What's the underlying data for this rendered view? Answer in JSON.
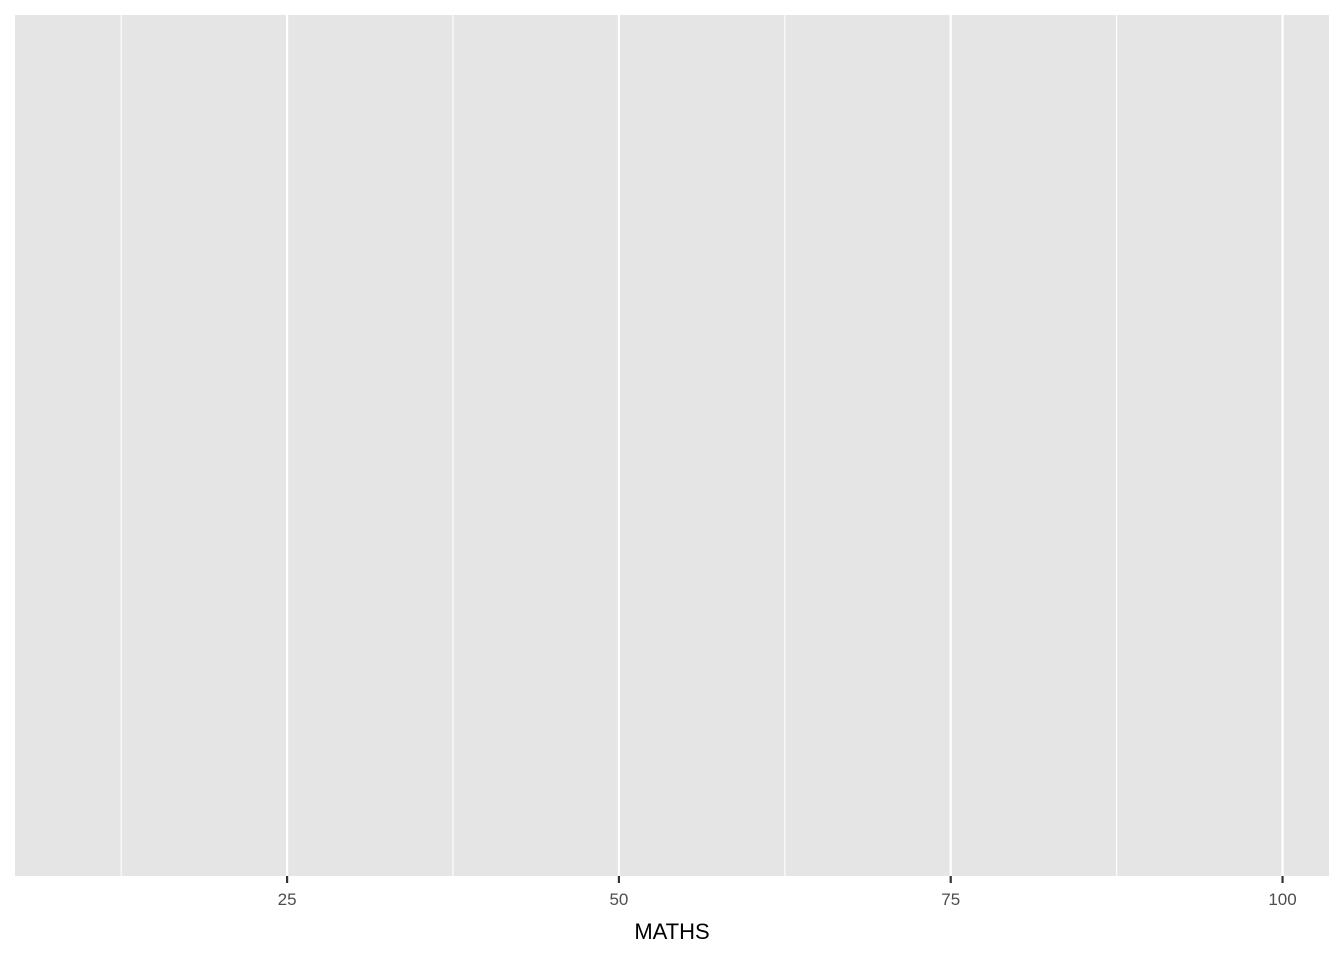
{
  "chart_data": {
    "type": "bar",
    "title": "",
    "xlabel": "MATHS",
    "ylabel": "",
    "x_ticks": [
      25,
      50,
      75,
      100
    ],
    "x_tick_labels": [
      "25",
      "50",
      "75",
      "100"
    ],
    "x_minor_breaks": [
      12.5,
      37.5,
      62.5,
      87.5
    ],
    "xlim": [
      4.5,
      103.5
    ],
    "series": [],
    "grid": true,
    "colors": {
      "panel": "#e5e5e5",
      "grid": "#ffffff",
      "tick": "#333333",
      "tick_label": "#4d4d4d"
    }
  }
}
